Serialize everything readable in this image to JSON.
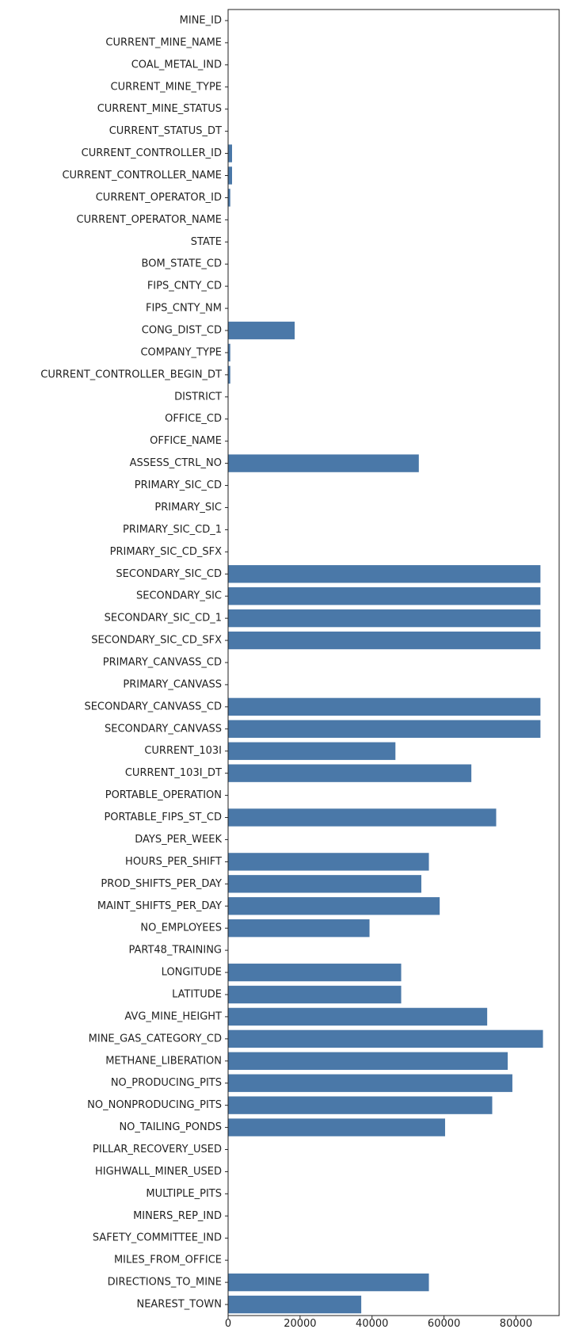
{
  "chart_data": {
    "type": "bar",
    "orientation": "horizontal",
    "title": "",
    "xlabel": "",
    "ylabel": "",
    "categories": [
      "MINE_ID",
      "CURRENT_MINE_NAME",
      "COAL_METAL_IND",
      "CURRENT_MINE_TYPE",
      "CURRENT_MINE_STATUS",
      "CURRENT_STATUS_DT",
      "CURRENT_CONTROLLER_ID",
      "CURRENT_CONTROLLER_NAME",
      "CURRENT_OPERATOR_ID",
      "CURRENT_OPERATOR_NAME",
      "STATE",
      "BOM_STATE_CD",
      "FIPS_CNTY_CD",
      "FIPS_CNTY_NM",
      "CONG_DIST_CD",
      "COMPANY_TYPE",
      "CURRENT_CONTROLLER_BEGIN_DT",
      "DISTRICT",
      "OFFICE_CD",
      "OFFICE_NAME",
      "ASSESS_CTRL_NO",
      "PRIMARY_SIC_CD",
      "PRIMARY_SIC",
      "PRIMARY_SIC_CD_1",
      "PRIMARY_SIC_CD_SFX",
      "SECONDARY_SIC_CD",
      "SECONDARY_SIC",
      "SECONDARY_SIC_CD_1",
      "SECONDARY_SIC_CD_SFX",
      "PRIMARY_CANVASS_CD",
      "PRIMARY_CANVASS",
      "SECONDARY_CANVASS_CD",
      "SECONDARY_CANVASS",
      "CURRENT_103I",
      "CURRENT_103I_DT",
      "PORTABLE_OPERATION",
      "PORTABLE_FIPS_ST_CD",
      "DAYS_PER_WEEK",
      "HOURS_PER_SHIFT",
      "PROD_SHIFTS_PER_DAY",
      "MAINT_SHIFTS_PER_DAY",
      "NO_EMPLOYEES",
      "PART48_TRAINING",
      "LONGITUDE",
      "LATITUDE",
      "AVG_MINE_HEIGHT",
      "MINE_GAS_CATEGORY_CD",
      "METHANE_LIBERATION",
      "NO_PRODUCING_PITS",
      "NO_NONPRODUCING_PITS",
      "NO_TAILING_PONDS",
      "PILLAR_RECOVERY_USED",
      "HIGHWALL_MINER_USED",
      "MULTIPLE_PITS",
      "MINERS_REP_IND",
      "SAFETY_COMMITTEE_IND",
      "MILES_FROM_OFFICE",
      "DIRECTIONS_TO_MINE",
      "NEAREST_TOWN"
    ],
    "values": [
      0,
      0,
      0,
      0,
      0,
      0,
      1100,
      1100,
      600,
      0,
      0,
      0,
      0,
      0,
      18500,
      600,
      600,
      0,
      0,
      0,
      53000,
      0,
      0,
      0,
      0,
      86800,
      86800,
      86800,
      86800,
      0,
      0,
      86800,
      86800,
      46500,
      67600,
      0,
      74500,
      0,
      55800,
      53700,
      58800,
      39300,
      0,
      48100,
      48100,
      72000,
      87500,
      77700,
      79000,
      73400,
      60300,
      0,
      0,
      0,
      0,
      0,
      0,
      55800,
      37000
    ],
    "xlim": [
      0,
      92000
    ],
    "xticks": [
      0,
      20000,
      40000,
      60000,
      80000
    ],
    "xtick_labels": [
      "0",
      "20000",
      "40000",
      "60000",
      "80000"
    ],
    "bar_color": "#4a78a8",
    "grid": false
  }
}
